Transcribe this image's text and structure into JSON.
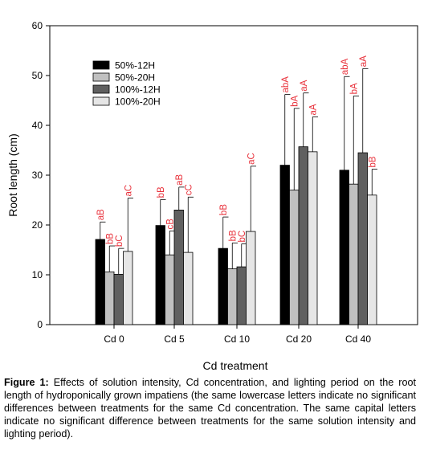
{
  "chart_data": {
    "type": "bar",
    "xlabel": "Cd treatment",
    "ylabel": "Root length (cm)",
    "ylim": [
      0,
      60
    ],
    "yticks": [
      0,
      10,
      20,
      30,
      40,
      50,
      60
    ],
    "categories": [
      "Cd 0",
      "Cd 5",
      "Cd 10",
      "Cd 20",
      "Cd 40"
    ],
    "legend_position": "top-left",
    "series": [
      {
        "name": "50%-12H",
        "color": "#000000",
        "values": [
          17.1,
          19.9,
          15.3,
          32.0,
          31.0
        ],
        "errors": [
          3.5,
          5.2,
          6.3,
          14.2,
          18.8
        ],
        "letters": [
          [
            "a",
            "B"
          ],
          [
            "b",
            "B"
          ],
          [
            "b",
            "B"
          ],
          [
            "ab",
            "A"
          ],
          [
            "ab",
            "A"
          ]
        ]
      },
      {
        "name": "50%-20H",
        "color": "#c0c0c0",
        "values": [
          10.6,
          14.0,
          11.2,
          27.0,
          28.2
        ],
        "errors": [
          5.2,
          4.8,
          5.2,
          16.4,
          17.7
        ],
        "letters": [
          [
            "b",
            "B"
          ],
          [
            "c",
            "B"
          ],
          [
            "b",
            "B"
          ],
          [
            "b",
            "A"
          ],
          [
            "b",
            "A"
          ]
        ]
      },
      {
        "name": "100%-12H",
        "color": "#606060",
        "values": [
          10.1,
          23.0,
          11.6,
          35.7,
          34.5
        ],
        "errors": [
          5.2,
          4.6,
          4.6,
          10.8,
          16.9
        ],
        "letters": [
          [
            "b",
            "C"
          ],
          [
            "a",
            "B"
          ],
          [
            "b",
            "C"
          ],
          [
            "a",
            "A"
          ],
          [
            "a",
            "A"
          ]
        ]
      },
      {
        "name": "100%-20H",
        "color": "#e6e6e6",
        "values": [
          14.7,
          14.5,
          18.7,
          34.7,
          26.0
        ],
        "errors": [
          10.7,
          11.1,
          13.1,
          7.0,
          5.2
        ],
        "letters": [
          [
            "a",
            "C"
          ],
          [
            "c",
            "C"
          ],
          [
            "a",
            "C"
          ],
          [
            "a",
            "A"
          ],
          [
            "b",
            "B"
          ]
        ]
      }
    ]
  },
  "caption": {
    "label": "Figure 1:",
    "text": " Effects of solution intensity, Cd concentration, and lighting period on the root length of hydroponically grown impatiens (the same lowercase letters indicate no significant differences between treatments for the same Cd concentration. The same capital letters indicate no significant difference between treatments for the same solution intensity and lighting period)."
  },
  "colors": {
    "letters": "#e8303a",
    "axis": "#000000"
  }
}
